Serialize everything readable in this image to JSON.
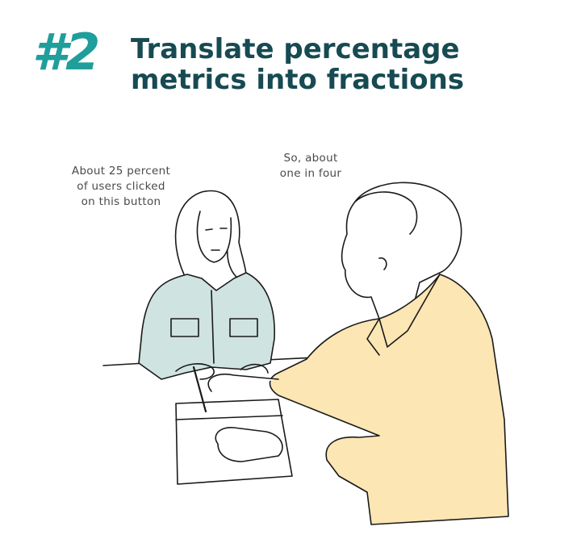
{
  "header": {
    "number": "#2",
    "title_line1": "Translate percentage",
    "title_line2": "metrics into fractions"
  },
  "speech": {
    "woman": [
      "About 25 percent",
      "of users clicked",
      "on this button"
    ],
    "man": [
      "So, about",
      "one in four"
    ]
  },
  "colors": {
    "accent": "#1f9e9c",
    "title": "#174a52",
    "woman_shirt": "#cfe3e0",
    "man_shirt": "#fbe6b4",
    "ink": "#1a1a1a"
  }
}
